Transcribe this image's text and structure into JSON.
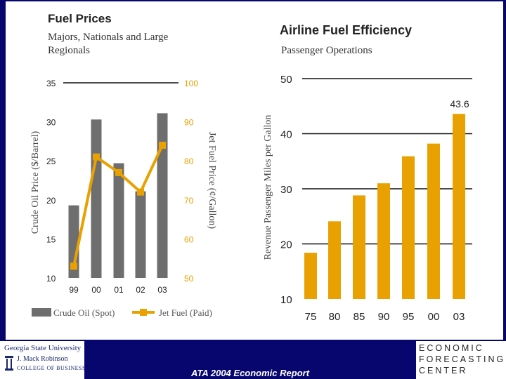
{
  "chart_data": [
    {
      "type": "bar+line",
      "title": "Fuel Prices",
      "subtitle": "Majors, Nationals and Large Regionals",
      "categories": [
        "99",
        "00",
        "01",
        "02",
        "03"
      ],
      "ylabel_left": "Crude Oil Price ($/Barrel)",
      "ylabel_right": "Jet Fuel Price (¢/Gallon)",
      "ylim_left": [
        10,
        35
      ],
      "ylim_right": [
        50,
        100
      ],
      "left_ticks": [
        "10",
        "15",
        "20",
        "25",
        "30",
        "35"
      ],
      "right_ticks": [
        "50",
        "60",
        "70",
        "80",
        "90",
        "100"
      ],
      "series": [
        {
          "name": "Crude Oil (Spot)",
          "type": "bar",
          "axis": "left",
          "values": [
            19.3,
            30.3,
            24.7,
            21.1,
            31.1
          ]
        },
        {
          "name": "Jet Fuel (Paid)",
          "type": "line",
          "axis": "right",
          "values": [
            53,
            81,
            77,
            72,
            84
          ]
        }
      ],
      "colors": {
        "bar": "#6e6e6e",
        "line": "#e8a100"
      },
      "grid": false,
      "legend": "bottom"
    },
    {
      "type": "bar",
      "title": "Airline Fuel Efficiency",
      "subtitle": "Passenger Operations",
      "categories": [
        "75",
        "80",
        "85",
        "90",
        "95",
        "00",
        "03"
      ],
      "values": [
        18.4,
        24.1,
        28.8,
        31.0,
        35.9,
        38.2,
        43.6
      ],
      "ylabel": "Revenue Passenger Miles per Gallon",
      "ylim": [
        10,
        50
      ],
      "ticks": [
        "10",
        "20",
        "30",
        "40",
        "50"
      ],
      "annotation": "43.6",
      "colors": {
        "bar": "#e8a100"
      },
      "grid": true
    }
  ],
  "footer": {
    "report": "ATA 2004 Economic Report",
    "gsu_line1": "Georgia State University",
    "gsu_line2": "J. Mack Robinson",
    "gsu_line3": "COLLEGE OF BUSINESS",
    "efc_line1": "ECONOMIC",
    "efc_line2": "FORECASTING",
    "efc_line3": "CENTER"
  }
}
